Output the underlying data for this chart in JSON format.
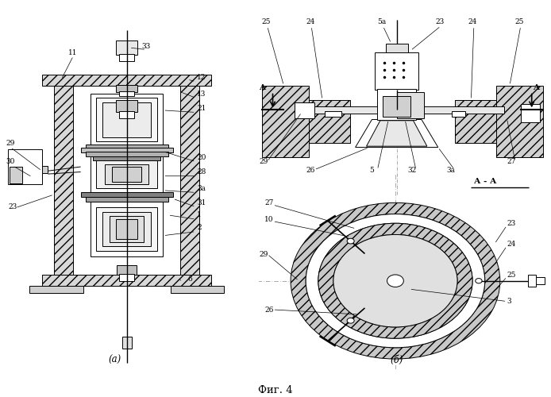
{
  "bg_color": "#ffffff",
  "line_color": "#000000",
  "title": "Фиг. 4",
  "label_a": "(а)",
  "label_b": "(б)",
  "fig_width": 6.94,
  "fig_height": 5.0,
  "dpi": 100
}
